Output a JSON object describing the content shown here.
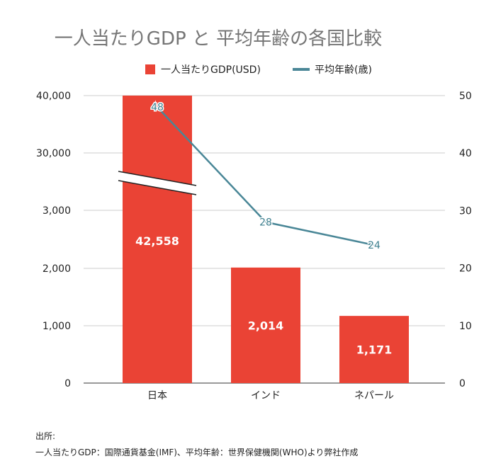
{
  "chart_data": {
    "type": "bar+line",
    "title": "一人当たりGDP と 平均年齢の各国比較",
    "categories": [
      "日本",
      "インド",
      "ネパール"
    ],
    "series": [
      {
        "name": "一人当たりGDP(USD)",
        "kind": "bar",
        "axis": "left",
        "values": [
          42558,
          2014,
          1171
        ],
        "labels": [
          "42,558",
          "2,014",
          "1,171"
        ],
        "color": "#ea4335"
      },
      {
        "name": "平均年齢(歳)",
        "kind": "line",
        "axis": "right",
        "values": [
          48,
          28,
          24
        ],
        "labels": [
          "48",
          "28",
          "24"
        ],
        "color": "#4a8797"
      }
    ],
    "left_axis": {
      "ticks": [
        0,
        1000,
        2000,
        3000,
        30000,
        40000
      ],
      "tick_labels": [
        "0",
        "1,000",
        "2,000",
        "3,000",
        "30,000",
        "40,000"
      ],
      "axis_break": true
    },
    "right_axis": {
      "ticks": [
        0,
        10,
        20,
        30,
        40,
        50
      ],
      "tick_labels": [
        "0",
        "10",
        "20",
        "30",
        "40",
        "50"
      ],
      "ylim": [
        0,
        50
      ]
    },
    "grid": true,
    "legend": "top-center"
  },
  "source": {
    "heading": "出所:",
    "text": "一人当たりGDP：国際通貨基金(IMF)、平均年齢：世界保健機関(WHO)より弊社作成"
  }
}
